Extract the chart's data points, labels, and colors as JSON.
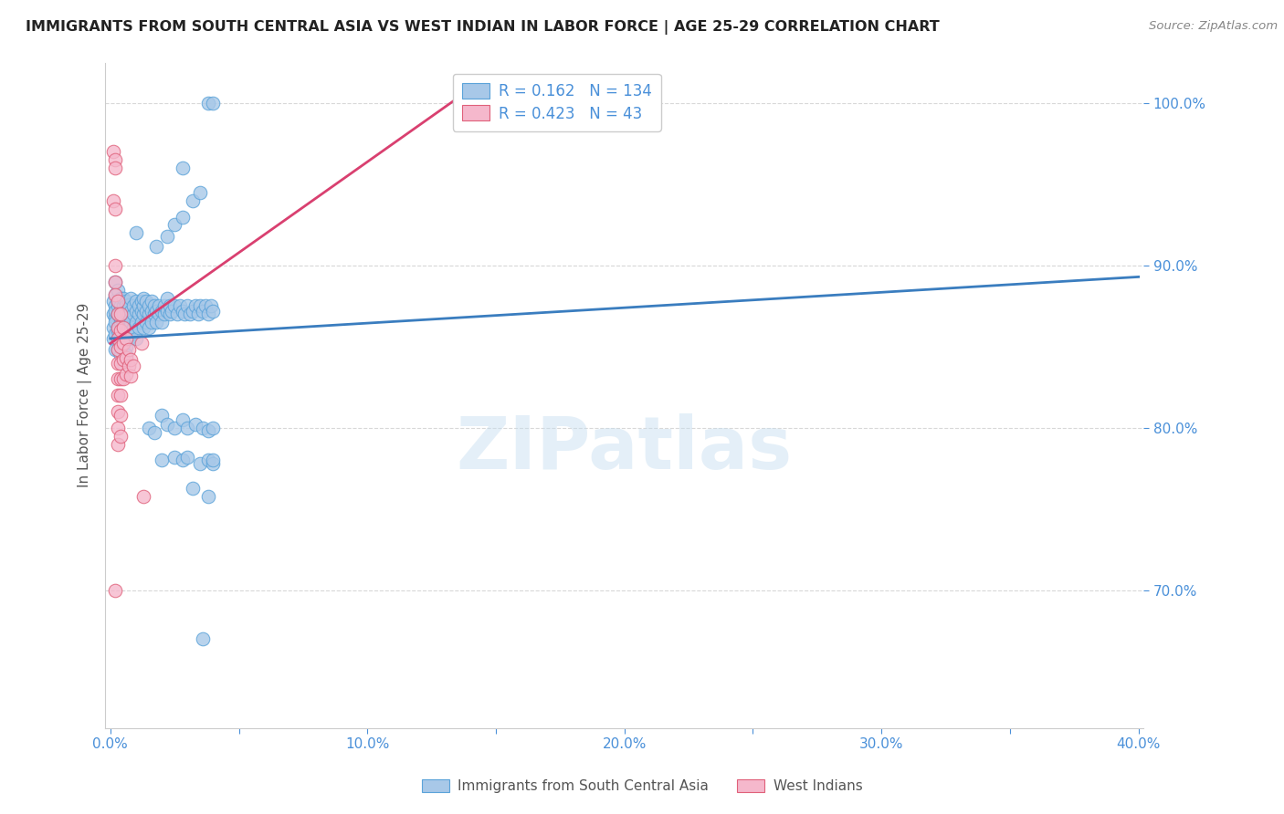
{
  "title": "IMMIGRANTS FROM SOUTH CENTRAL ASIA VS WEST INDIAN IN LABOR FORCE | AGE 25-29 CORRELATION CHART",
  "source": "Source: ZipAtlas.com",
  "ylabel": "In Labor Force | Age 25-29",
  "r_blue": 0.162,
  "n_blue": 134,
  "r_pink": 0.423,
  "n_pink": 43,
  "legend_blue": "Immigrants from South Central Asia",
  "legend_pink": "West Indians",
  "watermark": "ZIPatlas",
  "blue_color": "#a8c8e8",
  "blue_edge_color": "#5ba3d9",
  "pink_color": "#f5b8cc",
  "pink_edge_color": "#e0607a",
  "blue_trend_color": "#3a7dbf",
  "pink_trend_color": "#d94070",
  "blue_scatter": [
    [
      0.001,
      0.87
    ],
    [
      0.001,
      0.862
    ],
    [
      0.001,
      0.878
    ],
    [
      0.001,
      0.855
    ],
    [
      0.002,
      0.875
    ],
    [
      0.002,
      0.868
    ],
    [
      0.002,
      0.882
    ],
    [
      0.002,
      0.858
    ],
    [
      0.002,
      0.865
    ],
    [
      0.002,
      0.872
    ],
    [
      0.002,
      0.848
    ],
    [
      0.002,
      0.89
    ],
    [
      0.003,
      0.87
    ],
    [
      0.003,
      0.878
    ],
    [
      0.003,
      0.862
    ],
    [
      0.003,
      0.855
    ],
    [
      0.003,
      0.885
    ],
    [
      0.003,
      0.875
    ],
    [
      0.003,
      0.848
    ],
    [
      0.003,
      0.86
    ],
    [
      0.004,
      0.872
    ],
    [
      0.004,
      0.865
    ],
    [
      0.004,
      0.88
    ],
    [
      0.004,
      0.858
    ],
    [
      0.004,
      0.875
    ],
    [
      0.004,
      0.852
    ],
    [
      0.004,
      0.868
    ],
    [
      0.004,
      0.845
    ],
    [
      0.005,
      0.87
    ],
    [
      0.005,
      0.875
    ],
    [
      0.005,
      0.86
    ],
    [
      0.005,
      0.88
    ],
    [
      0.005,
      0.855
    ],
    [
      0.005,
      0.865
    ],
    [
      0.005,
      0.848
    ],
    [
      0.005,
      0.84
    ],
    [
      0.006,
      0.872
    ],
    [
      0.006,
      0.865
    ],
    [
      0.006,
      0.878
    ],
    [
      0.006,
      0.858
    ],
    [
      0.006,
      0.85
    ],
    [
      0.006,
      0.875
    ],
    [
      0.006,
      0.845
    ],
    [
      0.007,
      0.87
    ],
    [
      0.007,
      0.862
    ],
    [
      0.007,
      0.876
    ],
    [
      0.007,
      0.855
    ],
    [
      0.008,
      0.872
    ],
    [
      0.008,
      0.865
    ],
    [
      0.008,
      0.858
    ],
    [
      0.008,
      0.88
    ],
    [
      0.009,
      0.87
    ],
    [
      0.009,
      0.875
    ],
    [
      0.009,
      0.862
    ],
    [
      0.01,
      0.872
    ],
    [
      0.01,
      0.865
    ],
    [
      0.01,
      0.878
    ],
    [
      0.01,
      0.855
    ],
    [
      0.011,
      0.87
    ],
    [
      0.011,
      0.875
    ],
    [
      0.011,
      0.862
    ],
    [
      0.012,
      0.872
    ],
    [
      0.012,
      0.865
    ],
    [
      0.012,
      0.878
    ],
    [
      0.013,
      0.87
    ],
    [
      0.013,
      0.875
    ],
    [
      0.013,
      0.862
    ],
    [
      0.013,
      0.88
    ],
    [
      0.014,
      0.872
    ],
    [
      0.014,
      0.865
    ],
    [
      0.014,
      0.878
    ],
    [
      0.015,
      0.87
    ],
    [
      0.015,
      0.875
    ],
    [
      0.015,
      0.862
    ],
    [
      0.016,
      0.872
    ],
    [
      0.016,
      0.865
    ],
    [
      0.016,
      0.878
    ],
    [
      0.017,
      0.87
    ],
    [
      0.017,
      0.875
    ],
    [
      0.018,
      0.872
    ],
    [
      0.018,
      0.865
    ],
    [
      0.019,
      0.87
    ],
    [
      0.019,
      0.875
    ],
    [
      0.02,
      0.872
    ],
    [
      0.02,
      0.865
    ],
    [
      0.021,
      0.87
    ],
    [
      0.021,
      0.875
    ],
    [
      0.022,
      0.872
    ],
    [
      0.022,
      0.88
    ],
    [
      0.023,
      0.87
    ],
    [
      0.023,
      0.875
    ],
    [
      0.024,
      0.872
    ],
    [
      0.025,
      0.875
    ],
    [
      0.026,
      0.87
    ],
    [
      0.027,
      0.875
    ],
    [
      0.028,
      0.872
    ],
    [
      0.029,
      0.87
    ],
    [
      0.03,
      0.875
    ],
    [
      0.031,
      0.87
    ],
    [
      0.032,
      0.872
    ],
    [
      0.033,
      0.875
    ],
    [
      0.034,
      0.87
    ],
    [
      0.035,
      0.875
    ],
    [
      0.036,
      0.872
    ],
    [
      0.037,
      0.875
    ],
    [
      0.038,
      0.87
    ],
    [
      0.039,
      0.875
    ],
    [
      0.04,
      0.872
    ],
    [
      0.01,
      0.92
    ],
    [
      0.018,
      0.912
    ],
    [
      0.022,
      0.918
    ],
    [
      0.025,
      0.925
    ],
    [
      0.028,
      0.93
    ],
    [
      0.032,
      0.94
    ],
    [
      0.035,
      0.945
    ],
    [
      0.028,
      0.96
    ],
    [
      0.038,
      1.0
    ],
    [
      0.04,
      1.0
    ],
    [
      0.015,
      0.8
    ],
    [
      0.017,
      0.797
    ],
    [
      0.02,
      0.808
    ],
    [
      0.022,
      0.802
    ],
    [
      0.025,
      0.8
    ],
    [
      0.028,
      0.805
    ],
    [
      0.03,
      0.8
    ],
    [
      0.033,
      0.802
    ],
    [
      0.036,
      0.8
    ],
    [
      0.038,
      0.798
    ],
    [
      0.04,
      0.8
    ],
    [
      0.02,
      0.78
    ],
    [
      0.025,
      0.782
    ],
    [
      0.028,
      0.78
    ],
    [
      0.03,
      0.782
    ],
    [
      0.035,
      0.778
    ],
    [
      0.038,
      0.78
    ],
    [
      0.04,
      0.778
    ],
    [
      0.04,
      0.78
    ],
    [
      0.032,
      0.763
    ],
    [
      0.038,
      0.758
    ],
    [
      0.036,
      0.67
    ]
  ],
  "pink_scatter": [
    [
      0.001,
      0.97
    ],
    [
      0.002,
      0.965
    ],
    [
      0.002,
      0.96
    ],
    [
      0.001,
      0.94
    ],
    [
      0.002,
      0.935
    ],
    [
      0.002,
      0.9
    ],
    [
      0.002,
      0.89
    ],
    [
      0.002,
      0.882
    ],
    [
      0.003,
      0.878
    ],
    [
      0.003,
      0.87
    ],
    [
      0.003,
      0.862
    ],
    [
      0.003,
      0.855
    ],
    [
      0.003,
      0.848
    ],
    [
      0.003,
      0.84
    ],
    [
      0.003,
      0.83
    ],
    [
      0.003,
      0.82
    ],
    [
      0.003,
      0.81
    ],
    [
      0.003,
      0.8
    ],
    [
      0.003,
      0.79
    ],
    [
      0.004,
      0.87
    ],
    [
      0.004,
      0.86
    ],
    [
      0.004,
      0.85
    ],
    [
      0.004,
      0.84
    ],
    [
      0.004,
      0.83
    ],
    [
      0.004,
      0.82
    ],
    [
      0.004,
      0.808
    ],
    [
      0.004,
      0.795
    ],
    [
      0.005,
      0.862
    ],
    [
      0.005,
      0.852
    ],
    [
      0.005,
      0.842
    ],
    [
      0.005,
      0.83
    ],
    [
      0.006,
      0.855
    ],
    [
      0.006,
      0.843
    ],
    [
      0.006,
      0.833
    ],
    [
      0.007,
      0.848
    ],
    [
      0.007,
      0.838
    ],
    [
      0.008,
      0.842
    ],
    [
      0.008,
      0.832
    ],
    [
      0.009,
      0.838
    ],
    [
      0.012,
      0.852
    ],
    [
      0.013,
      0.758
    ],
    [
      0.002,
      0.7
    ]
  ],
  "blue_trend_x": [
    0.0,
    0.4
  ],
  "blue_trend_y": [
    0.855,
    0.893
  ],
  "pink_trend_x": [
    0.0,
    0.135
  ],
  "pink_trend_y": [
    0.852,
    1.003
  ],
  "xlim": [
    -0.002,
    0.402
  ],
  "ylim": [
    0.615,
    1.025
  ],
  "yticks": [
    0.7,
    0.8,
    0.9,
    1.0
  ],
  "ytick_labels": [
    "70.0%",
    "80.0%",
    "90.0%",
    "100.0%"
  ],
  "xticks": [
    0.0,
    0.05,
    0.1,
    0.15,
    0.2,
    0.25,
    0.3,
    0.35,
    0.4
  ],
  "xtick_labels": [
    "0.0%",
    "",
    "10.0%",
    "",
    "20.0%",
    "",
    "30.0%",
    "",
    "40.0%"
  ],
  "grid_color": "#d8d8d8",
  "axis_color": "#4a90d9",
  "bg_color": "#ffffff",
  "text_color": "#555555"
}
